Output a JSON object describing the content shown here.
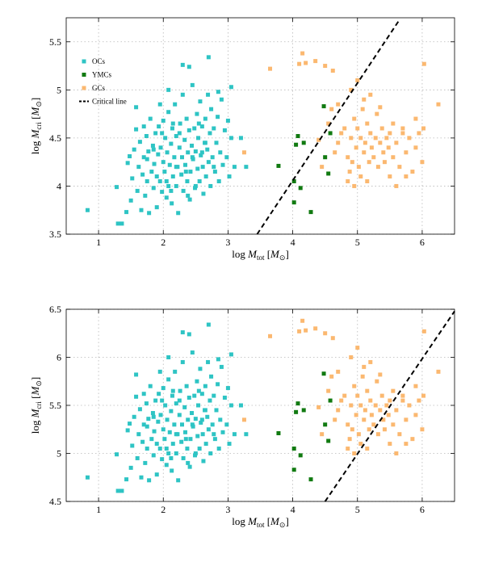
{
  "chart_data": [
    {
      "type": "scatter",
      "title": "",
      "xlabel": "log M_tot [M_⊙]",
      "ylabel": "log M_cri [M_⊙]",
      "xlim": [
        0.5,
        6.5
      ],
      "ylim": [
        3.5,
        5.75
      ],
      "xticks": [
        1,
        2,
        3,
        4,
        5,
        6
      ],
      "yticks": [
        3.5,
        4,
        4.5,
        5,
        5.5
      ],
      "ytick_labels": [
        "3.5",
        "4",
        "4.5",
        "5",
        "5.5"
      ],
      "grid": true,
      "legend_position": "top-left",
      "series": [
        {
          "name": "OCs",
          "color": "#2ec4c4",
          "points": [
            [
              0.83,
              3.75
            ],
            [
              1.28,
              3.99
            ],
            [
              1.3,
              3.61
            ],
            [
              1.36,
              3.61
            ],
            [
              1.43,
              3.73
            ],
            [
              1.45,
              4.24
            ],
            [
              1.48,
              4.31
            ],
            [
              1.5,
              3.85
            ],
            [
              1.52,
              4.08
            ],
            [
              1.55,
              4.38
            ],
            [
              1.58,
              4.59
            ],
            [
              1.6,
              3.95
            ],
            [
              1.62,
              4.2
            ],
            [
              1.64,
              4.46
            ],
            [
              1.66,
              3.75
            ],
            [
              1.68,
              4.12
            ],
            [
              1.7,
              4.3
            ],
            [
              1.72,
              3.9
            ],
            [
              1.74,
              4.52
            ],
            [
              1.75,
              4.05
            ],
            [
              1.77,
              4.36
            ],
            [
              1.78,
              3.72
            ],
            [
              1.8,
              4.7
            ],
            [
              1.82,
              4.15
            ],
            [
              1.84,
              4.42
            ],
            [
              1.85,
              3.98
            ],
            [
              1.86,
              4.23
            ],
            [
              1.88,
              4.55
            ],
            [
              1.9,
              4.1
            ],
            [
              1.9,
              3.78
            ],
            [
              1.92,
              4.33
            ],
            [
              1.93,
              4.62
            ],
            [
              1.95,
              4.05
            ],
            [
              1.96,
              4.4
            ],
            [
              1.98,
              3.94
            ],
            [
              2.0,
              4.25
            ],
            [
              2.0,
              4.68
            ],
            [
              2.02,
              4.15
            ],
            [
              2.03,
              4.5
            ],
            [
              2.05,
              3.88
            ],
            [
              2.06,
              4.35
            ],
            [
              2.08,
              4.0
            ],
            [
              2.08,
              4.77
            ],
            [
              2.1,
              4.22
            ],
            [
              2.12,
              4.44
            ],
            [
              2.13,
              3.82
            ],
            [
              2.14,
              4.6
            ],
            [
              2.15,
              4.1
            ],
            [
              2.17,
              4.3
            ],
            [
              2.18,
              4.85
            ],
            [
              2.2,
              4.0
            ],
            [
              2.2,
              4.52
            ],
            [
              2.22,
              4.2
            ],
            [
              2.23,
              3.72
            ],
            [
              2.25,
              4.4
            ],
            [
              2.26,
              4.65
            ],
            [
              2.28,
              4.12
            ],
            [
              2.29,
              4.3
            ],
            [
              2.3,
              4.95
            ],
            [
              2.31,
              3.95
            ],
            [
              2.33,
              4.48
            ],
            [
              2.34,
              4.22
            ],
            [
              2.36,
              4.7
            ],
            [
              2.37,
              4.05
            ],
            [
              2.38,
              4.35
            ],
            [
              2.4,
              4.58
            ],
            [
              2.41,
              3.86
            ],
            [
              2.42,
              4.15
            ],
            [
              2.44,
              4.42
            ],
            [
              2.45,
              5.05
            ],
            [
              2.46,
              4.28
            ],
            [
              2.48,
              4.6
            ],
            [
              2.49,
              3.98
            ],
            [
              2.5,
              4.36
            ],
            [
              2.52,
              4.75
            ],
            [
              2.53,
              4.18
            ],
            [
              2.54,
              4.5
            ],
            [
              2.56,
              4.05
            ],
            [
              2.57,
              4.88
            ],
            [
              2.58,
              4.32
            ],
            [
              2.6,
              4.62
            ],
            [
              2.61,
              4.2
            ],
            [
              2.62,
              3.92
            ],
            [
              2.64,
              4.45
            ],
            [
              2.65,
              4.7
            ],
            [
              2.66,
              4.1
            ],
            [
              2.68,
              4.38
            ],
            [
              2.69,
              4.95
            ],
            [
              2.7,
              4.25
            ],
            [
              2.72,
              4.55
            ],
            [
              2.73,
              4.0
            ],
            [
              2.74,
              4.8
            ],
            [
              2.76,
              4.3
            ],
            [
              2.78,
              4.6
            ],
            [
              2.8,
              4.15
            ],
            [
              2.82,
              4.45
            ],
            [
              2.84,
              4.72
            ],
            [
              2.86,
              4.05
            ],
            [
              2.88,
              4.35
            ],
            [
              2.9,
              4.9
            ],
            [
              2.92,
              4.22
            ],
            [
              2.95,
              4.58
            ],
            [
              2.98,
              4.3
            ],
            [
              3.0,
              4.68
            ],
            [
              3.02,
              4.1
            ],
            [
              3.05,
              4.5
            ],
            [
              3.1,
              4.2
            ],
            [
              3.2,
              4.5
            ],
            [
              3.28,
              4.2
            ],
            [
              2.3,
              5.26
            ],
            [
              2.4,
              5.24
            ],
            [
              2.7,
              5.34
            ],
            [
              2.85,
              4.98
            ],
            [
              3.05,
              5.03
            ]
          ],
          "extra_points": [
            [
              1.58,
              4.82
            ],
            [
              1.7,
              4.62
            ],
            [
              1.95,
              4.85
            ],
            [
              2.08,
              5.0
            ],
            [
              2.2,
              4.2
            ],
            [
              2.5,
              4.0
            ],
            [
              2.15,
              4.65
            ],
            [
              1.98,
              4.55
            ],
            [
              2.35,
              4.15
            ],
            [
              2.55,
              4.65
            ],
            [
              2.05,
              4.05
            ],
            [
              2.45,
              4.3
            ],
            [
              2.65,
              4.45
            ],
            [
              1.85,
              4.38
            ],
            [
              2.25,
              4.55
            ],
            [
              2.6,
              4.35
            ],
            [
              1.75,
              4.28
            ],
            [
              2.12,
              3.95
            ],
            [
              2.38,
              3.9
            ],
            [
              2.78,
              4.2
            ]
          ]
        },
        {
          "name": "YMCs",
          "color": "#117a11",
          "points": [
            [
              3.78,
              4.21
            ],
            [
              4.02,
              4.05
            ],
            [
              4.05,
              4.43
            ],
            [
              4.08,
              4.52
            ],
            [
              4.12,
              3.98
            ],
            [
              4.17,
              4.45
            ],
            [
              4.28,
              3.73
            ],
            [
              4.48,
              4.83
            ],
            [
              4.55,
              4.13
            ],
            [
              4.58,
              4.55
            ],
            [
              4.02,
              3.83
            ],
            [
              4.5,
              4.3
            ]
          ]
        },
        {
          "name": "GCs",
          "color": "#fbb870",
          "points": [
            [
              3.25,
              4.35
            ],
            [
              3.65,
              5.22
            ],
            [
              4.1,
              5.27
            ],
            [
              4.15,
              5.38
            ],
            [
              4.2,
              5.28
            ],
            [
              4.35,
              5.3
            ],
            [
              4.4,
              4.48
            ],
            [
              4.5,
              5.25
            ],
            [
              4.55,
              4.65
            ],
            [
              4.62,
              5.2
            ],
            [
              4.45,
              4.2
            ],
            [
              4.65,
              4.35
            ],
            [
              4.7,
              4.45
            ],
            [
              4.75,
              4.55
            ],
            [
              4.8,
              4.6
            ],
            [
              4.85,
              4.3
            ],
            [
              4.88,
              4.15
            ],
            [
              4.9,
              4.5
            ],
            [
              4.92,
              4.25
            ],
            [
              4.95,
              4.7
            ],
            [
              4.98,
              4.4
            ],
            [
              5.0,
              4.6
            ],
            [
              5.02,
              4.2
            ],
            [
              5.05,
              4.5
            ],
            [
              5.08,
              4.8
            ],
            [
              5.1,
              4.35
            ],
            [
              5.12,
              4.45
            ],
            [
              5.15,
              4.65
            ],
            [
              5.18,
              4.25
            ],
            [
              5.2,
              4.55
            ],
            [
              5.22,
              4.4
            ],
            [
              5.25,
              4.3
            ],
            [
              5.28,
              4.5
            ],
            [
              5.3,
              4.75
            ],
            [
              5.32,
              4.2
            ],
            [
              5.35,
              4.45
            ],
            [
              5.38,
              4.6
            ],
            [
              5.4,
              4.35
            ],
            [
              5.42,
              4.25
            ],
            [
              5.45,
              4.5
            ],
            [
              5.48,
              4.4
            ],
            [
              5.5,
              4.55
            ],
            [
              5.55,
              4.3
            ],
            [
              5.6,
              4.45
            ],
            [
              5.65,
              4.2
            ],
            [
              5.7,
              4.6
            ],
            [
              5.75,
              4.35
            ],
            [
              5.8,
              4.5
            ],
            [
              5.85,
              4.15
            ],
            [
              5.9,
              4.4
            ],
            [
              5.95,
              4.55
            ],
            [
              6.0,
              4.25
            ],
            [
              6.02,
              4.6
            ],
            [
              6.25,
              4.85
            ],
            [
              6.03,
              5.27
            ],
            [
              4.9,
              5.0
            ],
            [
              5.0,
              5.1
            ],
            [
              5.2,
              4.95
            ],
            [
              5.1,
              4.9
            ],
            [
              4.7,
              4.85
            ],
            [
              4.6,
              4.8
            ],
            [
              5.35,
              4.82
            ],
            [
              5.6,
              4.0
            ],
            [
              5.5,
              4.1
            ],
            [
              5.75,
              4.1
            ],
            [
              4.85,
              4.05
            ],
            [
              5.05,
              4.1
            ],
            [
              5.15,
              4.05
            ],
            [
              4.95,
              4.0
            ],
            [
              5.7,
              4.55
            ],
            [
              5.55,
              4.65
            ],
            [
              5.9,
              4.7
            ]
          ]
        }
      ],
      "critical_line": {
        "name": "Critical line",
        "points": [
          [
            3.45,
            3.5
          ],
          [
            5.65,
            5.73
          ]
        ]
      }
    },
    {
      "type": "scatter",
      "title": "",
      "xlabel": "log M_tot [M_⊙]",
      "ylabel": "log M_cri [M_⊙]",
      "xlim": [
        0.5,
        6.5
      ],
      "ylim": [
        4.5,
        6.5
      ],
      "xticks": [
        1,
        2,
        3,
        4,
        5,
        6
      ],
      "yticks": [
        4.5,
        5,
        5.5,
        6,
        6.5
      ],
      "ytick_labels": [
        "4.5",
        "5",
        "5.5",
        "6",
        "6.5"
      ],
      "grid": true,
      "y_shift_from_first": 1.0,
      "critical_line": {
        "name": "Critical line",
        "points": [
          [
            4.5,
            4.5
          ],
          [
            6.5,
            6.48
          ]
        ]
      }
    }
  ]
}
